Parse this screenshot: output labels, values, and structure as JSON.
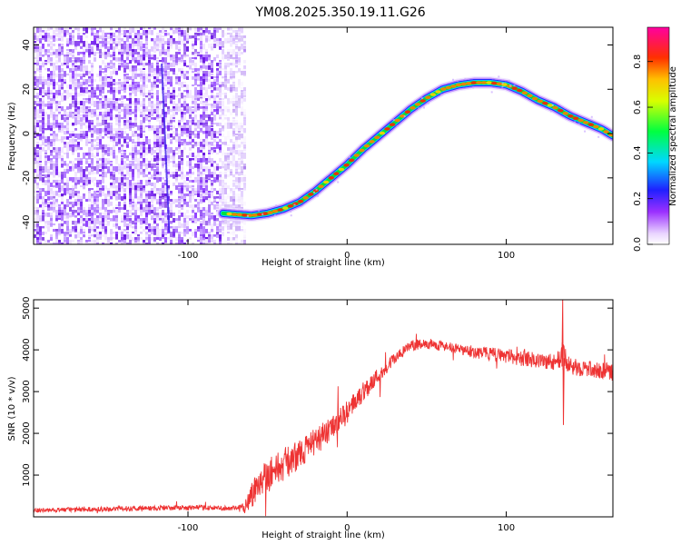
{
  "title": "YM08.2025.350.19.11.G26",
  "charts": {
    "spectrogram": {
      "type": "heatmap",
      "xlabel": "Height of straight line (km)",
      "ylabel": "Frequency (Hz)",
      "xlim": [
        -197,
        167
      ],
      "ylim": [
        -50,
        48
      ],
      "xticks": [
        -100,
        0,
        100
      ],
      "yticks": [
        -40,
        -20,
        0,
        20,
        40
      ],
      "noise_region_x": [
        -197,
        -65
      ],
      "noise_line_x": [
        -118,
        -112
      ],
      "track": {
        "start_x": -78,
        "x": [
          -78,
          -70,
          -60,
          -50,
          -40,
          -30,
          -20,
          -10,
          0,
          10,
          20,
          30,
          40,
          50,
          60,
          70,
          80,
          90,
          100,
          110,
          120,
          130,
          140,
          150,
          160,
          167
        ],
        "freq": [
          -36,
          -36.5,
          -37,
          -36,
          -34,
          -31,
          -26,
          -20,
          -14,
          -7,
          -1,
          5,
          11,
          16,
          20,
          22,
          23,
          23,
          22,
          19,
          15,
          12,
          8,
          5,
          2,
          -1
        ]
      },
      "colorbar": {
        "label": "Normalized spectral amplitude",
        "range": [
          0,
          0.95
        ],
        "ticks": [
          "0.0",
          "0.2",
          "0.4",
          "0.6",
          "0.8"
        ],
        "tick_values": [
          0,
          0.2,
          0.4,
          0.6,
          0.8
        ]
      }
    },
    "snr": {
      "type": "line",
      "xlabel": "Height of straight line (km)",
      "ylabel": "SNR (10 * v/v)",
      "xlim": [
        -197,
        167
      ],
      "ylim": [
        0,
        5200
      ],
      "xticks": [
        -100,
        0,
        100
      ],
      "yticks": [
        1000,
        2000,
        3000,
        4000,
        5000
      ],
      "line_color": "#ee3333",
      "series": {
        "x": [
          -197,
          -180,
          -160,
          -140,
          -120,
          -100,
          -90,
          -80,
          -70,
          -65,
          -60,
          -55,
          -50,
          -40,
          -30,
          -20,
          -10,
          0,
          10,
          20,
          30,
          40,
          50,
          60,
          70,
          80,
          90,
          100,
          110,
          120,
          130,
          135,
          140,
          150,
          160,
          167
        ],
        "value": [
          150,
          170,
          180,
          200,
          210,
          220,
          220,
          210,
          200,
          230,
          500,
          900,
          1000,
          1250,
          1500,
          1800,
          2100,
          2500,
          3000,
          3400,
          3800,
          4100,
          4150,
          4100,
          4000,
          3950,
          3900,
          3850,
          3800,
          3750,
          3700,
          3900,
          3600,
          3550,
          3500,
          3450
        ],
        "spread": [
          110,
          110,
          110,
          120,
          120,
          120,
          120,
          120,
          120,
          300,
          700,
          800,
          850,
          800,
          700,
          650,
          600,
          550,
          500,
          400,
          300,
          250,
          250,
          250,
          250,
          300,
          320,
          350,
          380,
          400,
          420,
          600,
          400,
          400,
          400,
          400
        ]
      }
    }
  }
}
